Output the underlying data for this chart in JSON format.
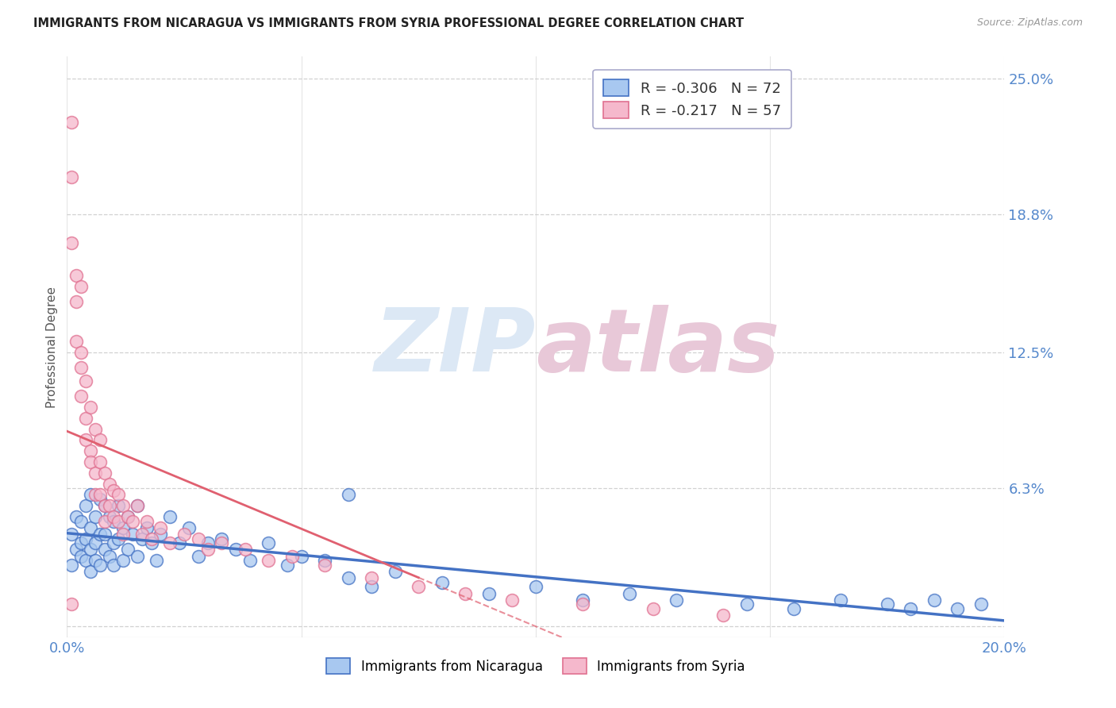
{
  "title": "IMMIGRANTS FROM NICARAGUA VS IMMIGRANTS FROM SYRIA PROFESSIONAL DEGREE CORRELATION CHART",
  "source": "Source: ZipAtlas.com",
  "ylabel": "Professional Degree",
  "xlim": [
    0.0,
    0.2
  ],
  "ylim": [
    -0.005,
    0.26
  ],
  "yticks": [
    0.0,
    0.063,
    0.125,
    0.188,
    0.25
  ],
  "ytick_labels": [
    "",
    "6.3%",
    "12.5%",
    "18.8%",
    "25.0%"
  ],
  "xticks": [
    0.0,
    0.05,
    0.1,
    0.15,
    0.2
  ],
  "xtick_labels": [
    "0.0%",
    "",
    "",
    "",
    "20.0%"
  ],
  "legend1_label": "Immigrants from Nicaragua",
  "legend2_label": "Immigrants from Syria",
  "R1": -0.306,
  "N1": 72,
  "R2": -0.217,
  "N2": 57,
  "color_nicaragua": "#a8c8f0",
  "color_syria": "#f5b8cc",
  "color_nicaragua_edge": "#4472c4",
  "color_syria_edge": "#e07090",
  "color_nicaragua_line": "#4472c4",
  "color_syria_line": "#e06070",
  "watermark_color": "#dce8f5",
  "background_color": "#ffffff",
  "title_color": "#222222",
  "ylabel_color": "#555555",
  "tick_color": "#5588cc",
  "grid_color": "#cccccc",
  "nicaragua_x": [
    0.001,
    0.001,
    0.002,
    0.002,
    0.003,
    0.003,
    0.003,
    0.004,
    0.004,
    0.004,
    0.005,
    0.005,
    0.005,
    0.005,
    0.006,
    0.006,
    0.006,
    0.007,
    0.007,
    0.007,
    0.008,
    0.008,
    0.008,
    0.009,
    0.009,
    0.01,
    0.01,
    0.01,
    0.011,
    0.011,
    0.012,
    0.012,
    0.013,
    0.013,
    0.014,
    0.015,
    0.015,
    0.016,
    0.017,
    0.018,
    0.019,
    0.02,
    0.022,
    0.024,
    0.026,
    0.028,
    0.03,
    0.033,
    0.036,
    0.039,
    0.043,
    0.047,
    0.05,
    0.055,
    0.06,
    0.065,
    0.07,
    0.08,
    0.09,
    0.1,
    0.11,
    0.12,
    0.13,
    0.145,
    0.155,
    0.165,
    0.175,
    0.18,
    0.185,
    0.19,
    0.195,
    0.06
  ],
  "nicaragua_y": [
    0.042,
    0.028,
    0.05,
    0.035,
    0.048,
    0.032,
    0.038,
    0.055,
    0.03,
    0.04,
    0.06,
    0.035,
    0.045,
    0.025,
    0.05,
    0.038,
    0.03,
    0.058,
    0.042,
    0.028,
    0.055,
    0.035,
    0.042,
    0.05,
    0.032,
    0.048,
    0.038,
    0.028,
    0.055,
    0.04,
    0.045,
    0.03,
    0.05,
    0.035,
    0.042,
    0.055,
    0.032,
    0.04,
    0.045,
    0.038,
    0.03,
    0.042,
    0.05,
    0.038,
    0.045,
    0.032,
    0.038,
    0.04,
    0.035,
    0.03,
    0.038,
    0.028,
    0.032,
    0.03,
    0.022,
    0.018,
    0.025,
    0.02,
    0.015,
    0.018,
    0.012,
    0.015,
    0.012,
    0.01,
    0.008,
    0.012,
    0.01,
    0.008,
    0.012,
    0.008,
    0.01,
    0.06
  ],
  "syria_x": [
    0.001,
    0.001,
    0.001,
    0.002,
    0.002,
    0.002,
    0.003,
    0.003,
    0.003,
    0.003,
    0.004,
    0.004,
    0.004,
    0.005,
    0.005,
    0.005,
    0.006,
    0.006,
    0.006,
    0.007,
    0.007,
    0.007,
    0.008,
    0.008,
    0.008,
    0.009,
    0.009,
    0.01,
    0.01,
    0.011,
    0.011,
    0.012,
    0.012,
    0.013,
    0.014,
    0.015,
    0.016,
    0.017,
    0.018,
    0.02,
    0.022,
    0.025,
    0.028,
    0.03,
    0.033,
    0.038,
    0.043,
    0.048,
    0.055,
    0.065,
    0.075,
    0.085,
    0.095,
    0.11,
    0.125,
    0.14,
    0.001
  ],
  "syria_y": [
    0.23,
    0.205,
    0.175,
    0.16,
    0.148,
    0.13,
    0.155,
    0.125,
    0.118,
    0.105,
    0.112,
    0.095,
    0.085,
    0.1,
    0.08,
    0.075,
    0.09,
    0.07,
    0.06,
    0.085,
    0.075,
    0.06,
    0.07,
    0.055,
    0.048,
    0.065,
    0.055,
    0.062,
    0.05,
    0.06,
    0.048,
    0.055,
    0.042,
    0.05,
    0.048,
    0.055,
    0.042,
    0.048,
    0.04,
    0.045,
    0.038,
    0.042,
    0.04,
    0.035,
    0.038,
    0.035,
    0.03,
    0.032,
    0.028,
    0.022,
    0.018,
    0.015,
    0.012,
    0.01,
    0.008,
    0.005,
    0.01
  ]
}
